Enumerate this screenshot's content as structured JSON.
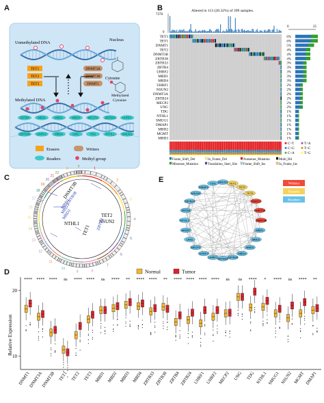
{
  "panels": {
    "A": {
      "letter": "A",
      "labels": {
        "unmethylated": "Unmethylated DNA",
        "nucleus": "Nucleus",
        "cytosine": "Cytosine",
        "methylated_dna": "Methylated DNA",
        "methylated_cytosine": "Methylated\nCytosine",
        "methylated_cytosine_l1": "Methylated",
        "methylated_cytosine_l2": "Cytosine"
      },
      "erasers_boxes": [
        "TET1",
        "TET2",
        "TET3"
      ],
      "writers_boxes": [
        "DNMT3A",
        "DNMT3B",
        "DNMT1"
      ],
      "reader_pills": [
        "ZBTB4",
        "MBD1",
        "MBD2",
        "MBD3",
        "MECP2",
        "ZBTB33",
        "UHRF1",
        "ZBTB38",
        "UHRF2",
        "MBD4",
        "UNG",
        "TDG",
        "NTHL1",
        "SMUG1"
      ],
      "legend": {
        "erasers": "Erasers",
        "writers": "Writers",
        "readers": "Readers",
        "methyl": "Methyl group"
      },
      "colors": {
        "eraser": "#f7a21b",
        "writer": "#c8946a",
        "reader": "#3ec9c9",
        "methyl": "#e0456a",
        "background": "#cfe6f7"
      }
    },
    "B": {
      "letter": "B",
      "header": "Altered in 113 (28.32%) of 399 samples.",
      "tmb_max": "7278",
      "tmb_min": "0",
      "axis_right": [
        "0",
        "25"
      ],
      "genes": [
        {
          "name": "TET3",
          "pct": "6%"
        },
        {
          "name": "TET1",
          "pct": "6%"
        },
        {
          "name": "DNMT1",
          "pct": "5%"
        },
        {
          "name": "TET2",
          "pct": "4%"
        },
        {
          "name": "DNMT3B",
          "pct": "4%"
        },
        {
          "name": "ZBTB38",
          "pct": "4%"
        },
        {
          "name": "ZBTB33",
          "pct": "3%"
        },
        {
          "name": "ZBTB4",
          "pct": "3%"
        },
        {
          "name": "UHRF2",
          "pct": "3%"
        },
        {
          "name": "MBD1",
          "pct": "3%"
        },
        {
          "name": "MBD4",
          "pct": "3%"
        },
        {
          "name": "UHRF1",
          "pct": "2%"
        },
        {
          "name": "NSUN2",
          "pct": "2%"
        },
        {
          "name": "DNMT3A",
          "pct": "2%"
        },
        {
          "name": "ZBTB24",
          "pct": "2%"
        },
        {
          "name": "MECP2",
          "pct": "2%"
        },
        {
          "name": "UNG",
          "pct": "2%"
        },
        {
          "name": "TDG",
          "pct": "1%"
        },
        {
          "name": "NTHL1",
          "pct": "1%"
        },
        {
          "name": "SMUG1",
          "pct": "1%"
        },
        {
          "name": "DMAP1",
          "pct": "1%"
        },
        {
          "name": "MBD2",
          "pct": "1%"
        },
        {
          "name": "MGMT",
          "pct": "1%"
        },
        {
          "name": "MBD3",
          "pct": "1%"
        }
      ],
      "titv_legend": [
        "C>T",
        "C>G",
        "C>A",
        "T>A",
        "T>C",
        "T>G"
      ],
      "titv_colors": [
        "#e41a1c",
        "#377eb8",
        "#4daf4a",
        "#984ea3",
        "#ff7f00",
        "#ffff33"
      ],
      "mutation_legend": [
        {
          "label": "Frame_Shift_Del",
          "color": "#1f78b4"
        },
        {
          "label": "In_Frame_Del",
          "color": "#ffff99"
        },
        {
          "label": "Nonsense_Mutation",
          "color": "#e31a1c"
        },
        {
          "label": "Multi_Hit",
          "color": "#000000"
        },
        {
          "label": "Missense_Mutation",
          "color": "#33a02c"
        },
        {
          "label": "Translation_Start_Site",
          "color": "#6a3d9a"
        },
        {
          "label": "Frame_Shift_Ins",
          "color": "#a6cee3"
        },
        {
          "label": "In_Frame_Ins",
          "color": "#fdbf6f"
        }
      ]
    },
    "C": {
      "letter": "C",
      "gene_labels_black": [
        "DNMT3B",
        "NTHL1",
        "TET1",
        "TET2",
        "NSUN2"
      ],
      "gene_labels_blue": [
        "MBD1",
        "MBD3",
        "MBD2",
        "ZBTB38",
        "ZBTB4"
      ],
      "chromosomes": [
        "1",
        "2",
        "3",
        "4",
        "5",
        "6",
        "7",
        "8",
        "9",
        "10",
        "11",
        "12",
        "13",
        "14",
        "15",
        "16",
        "17",
        "18",
        "19",
        "20",
        "21",
        "22",
        "X",
        "Y"
      ]
    },
    "E": {
      "letter": "E",
      "legend": [
        {
          "label": "Writers",
          "color": "#f04a3a"
        },
        {
          "label": "Erasers",
          "color": "#f5d35a"
        },
        {
          "label": "Readers",
          "color": "#67c1e8"
        }
      ],
      "nodes": [
        {
          "name": "SMUG1",
          "role": "reader"
        },
        {
          "name": "TET1",
          "role": "eraser"
        },
        {
          "name": "TET2",
          "role": "eraser"
        },
        {
          "name": "TET3",
          "role": "eraser"
        },
        {
          "name": "DNMT1",
          "role": "writer"
        },
        {
          "name": "DNMT3A",
          "role": "writer"
        },
        {
          "name": "DNMT3B",
          "role": "writer"
        },
        {
          "name": "MBD1",
          "role": "reader"
        },
        {
          "name": "MBD2",
          "role": "reader"
        },
        {
          "name": "MBD3",
          "role": "reader"
        },
        {
          "name": "MBD4",
          "role": "reader"
        },
        {
          "name": "ZBTB38",
          "role": "reader"
        },
        {
          "name": "ZBTB33",
          "role": "reader"
        },
        {
          "name": "UHRF1",
          "role": "reader"
        },
        {
          "name": "UHRF2",
          "role": "reader"
        },
        {
          "name": "MECP2",
          "role": "reader"
        },
        {
          "name": "UNG",
          "role": "reader"
        },
        {
          "name": "MGMT",
          "role": "reader"
        },
        {
          "name": "NTHL1",
          "role": "reader"
        },
        {
          "name": "ZBTB4",
          "role": "reader"
        },
        {
          "name": "ZBTB24",
          "role": "reader"
        },
        {
          "name": "NSUN2",
          "role": "reader"
        },
        {
          "name": "DMAP1",
          "role": "reader"
        },
        {
          "name": "TDG",
          "role": "reader"
        }
      ]
    },
    "D": {
      "letter": "D",
      "legend": [
        {
          "label": "Normal",
          "color": "#f2b632"
        },
        {
          "label": "Tumor",
          "color": "#e0202a"
        }
      ]
    }
  },
  "chart_data": {
    "type": "box",
    "ylabel": "Relative Expression",
    "yticks": [
      "10",
      "20"
    ],
    "ylim": [
      8,
      22
    ],
    "categories": [
      "DNMT1",
      "DNMT3A",
      "DNMT3B",
      "TET1",
      "TET2",
      "TET3",
      "MBD1",
      "MBD2",
      "MBD3",
      "MBD4",
      "ZBTB33",
      "ZBTB38",
      "ZBTB4",
      "ZBTB24",
      "UHRF1",
      "UHRF2",
      "MECP2",
      "UNG",
      "TDG",
      "NTHL1",
      "SMUG1",
      "NSUN2",
      "MGMT",
      "DMAP1"
    ],
    "significance": [
      "****",
      "****",
      "****",
      "ns",
      "****",
      "****",
      "ns",
      "****",
      "**",
      "****",
      "****",
      "**",
      "****",
      "****",
      "****",
      "****",
      "ns",
      "ns",
      "****",
      "*",
      "****",
      "ns",
      "****",
      "**"
    ],
    "series": [
      {
        "name": "Normal",
        "medians": [
          17.2,
          16.0,
          13.6,
          11.0,
          13.2,
          15.6,
          17.0,
          17.3,
          17.8,
          17.6,
          16.8,
          17.5,
          15.2,
          15.5,
          15.0,
          16.0,
          16.5,
          19.0,
          17.4,
          17.5,
          16.5,
          15.8,
          16.5,
          17.0
        ]
      },
      {
        "name": "Tumor",
        "medians": [
          18.0,
          16.4,
          14.0,
          10.6,
          14.6,
          16.3,
          17.0,
          17.6,
          18.2,
          18.0,
          17.3,
          17.2,
          16.2,
          16.6,
          17.0,
          17.0,
          16.6,
          19.0,
          19.8,
          18.4,
          17.2,
          17.7,
          18.2,
          17.3
        ]
      }
    ]
  }
}
